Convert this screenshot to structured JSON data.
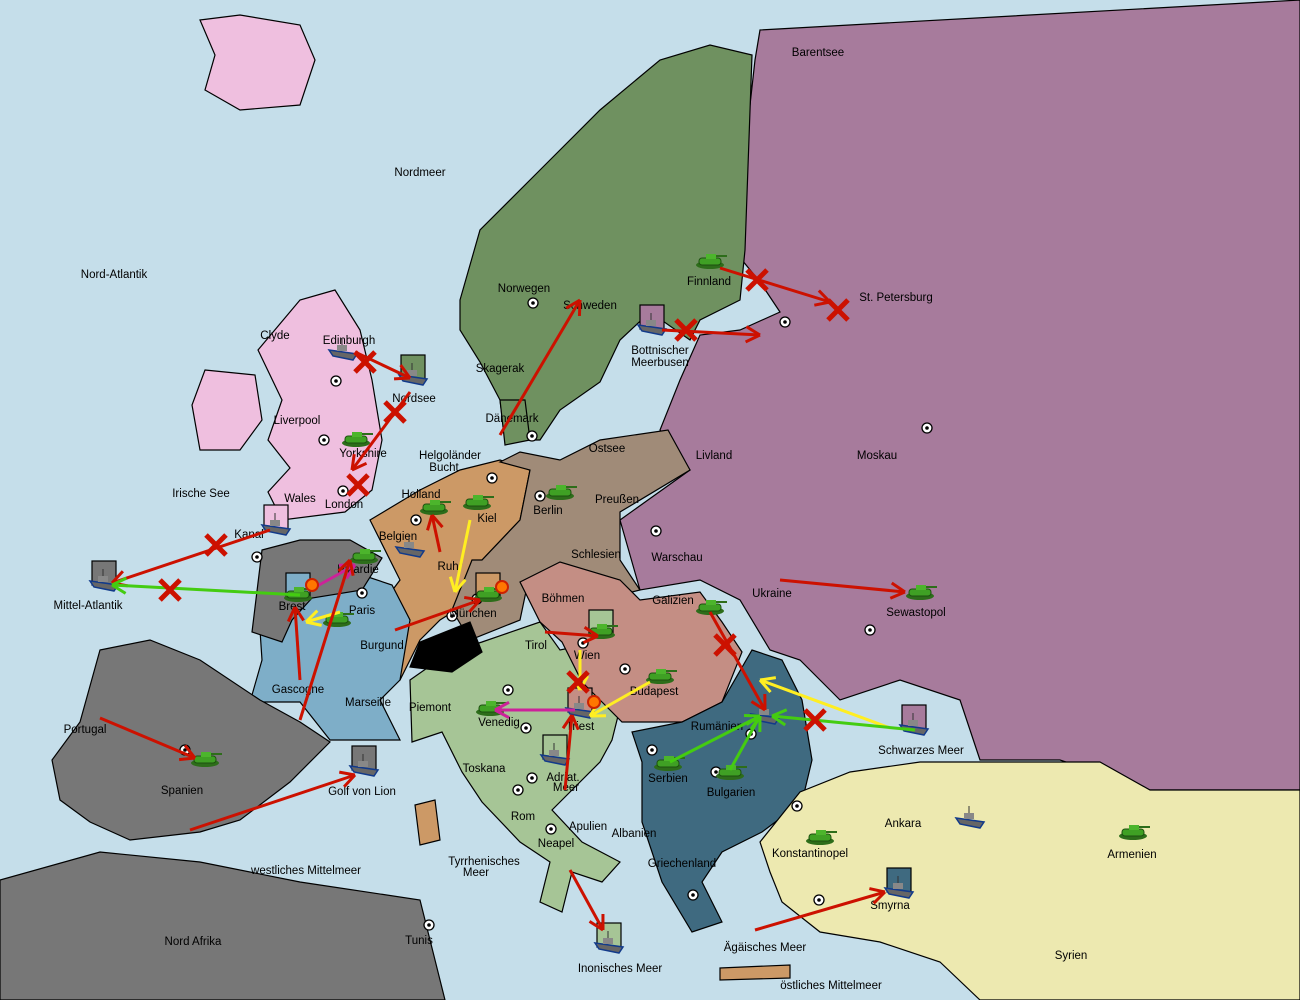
{
  "colors": {
    "sea": "#c5deea",
    "russia": "#a77b9c",
    "scandinavia": "#6f9160",
    "england": "#efbfdf",
    "germany": "#a08b78",
    "low_countries": "#cc9966",
    "france": "#7eaec8",
    "neutral_grey": "#777777",
    "italy": "#a6c596",
    "austria": "#c48e84",
    "balkans": "#3f6a80",
    "turkey": "#ede9b0",
    "switzerland": "#000000",
    "order_move": "#cc1100",
    "order_support": "#ffee22",
    "order_convoy_green": "#44cc11",
    "order_retreat": "#cc2299"
  },
  "provinces": [
    "Barentsee",
    "Nordmeer",
    "Nord-Atlantik",
    "Norwegen",
    "Schweden",
    "Finnland",
    "St. Petersburg",
    "Clyde",
    "Edinburgh",
    "Skagerak",
    "Bottnischer",
    "Meerbusen",
    "Nordsee",
    "Liverpool",
    "Dänemark",
    "Ostsee",
    "Livland",
    "Moskau",
    "Helgoländer",
    "Bucht",
    "Yorkshire",
    "Irische See",
    "Holland",
    "Wales",
    "London",
    "Preußen",
    "Berlin",
    "Kiel",
    "Kanal",
    "Belgien",
    "Schlesien",
    "Warschau",
    "Pikardie",
    "Ruhr",
    "Ukraine",
    "Sewastopol",
    "Mittel-Atlantik",
    "Brest",
    "Paris",
    "Böhmen",
    "Galizien",
    "München",
    "Burgund",
    "Tirol",
    "Wien",
    "Gascogne",
    "Budapest",
    "Marseille",
    "Piemont",
    "Venedig",
    "Triest",
    "Rumänien",
    "Schwarzes Meer",
    "Portugal",
    "Spanien",
    "Serbien",
    "Adriat.",
    "Meer",
    "Bulgarien",
    "Golf von Lion",
    "Toskana",
    "Rom",
    "Apulien",
    "Albanien",
    "Ankara",
    "Neapel",
    "Konstantinopel",
    "Armenien",
    "Tyrrhenisches",
    "Meer",
    "westliches Mittelmeer",
    "Griechenland",
    "Smyrna",
    "Nord Afrika",
    "Tunis",
    "Ägäisches Meer",
    "Syrien",
    "Inonisches Meer",
    "östliches Mittelmeer"
  ],
  "units": [
    {
      "type": "fleet",
      "at": "Edinburgh"
    },
    {
      "type": "fleet",
      "at": "Nordsee",
      "box": "#6f9160"
    },
    {
      "type": "army",
      "at": "Yorkshire"
    },
    {
      "type": "army",
      "at": "Finnland"
    },
    {
      "type": "fleet",
      "at": "Bottnischer Meerbusen",
      "box": "#a77b9c"
    },
    {
      "type": "army",
      "at": "Holland"
    },
    {
      "type": "army",
      "at": "Kiel"
    },
    {
      "type": "army",
      "at": "Berlin"
    },
    {
      "type": "fleet",
      "at": "Belgien"
    },
    {
      "type": "fleet",
      "at": "Kanal",
      "box": "#efbfdf"
    },
    {
      "type": "fleet",
      "at": "Mittel-Atlantik",
      "box": "#777777"
    },
    {
      "type": "army",
      "at": "Pikardie"
    },
    {
      "type": "army",
      "at": "Brest",
      "box": "#7eaec8"
    },
    {
      "type": "army",
      "at": "Paris"
    },
    {
      "type": "army",
      "at": "München",
      "box": "#cc9966"
    },
    {
      "type": "army",
      "at": "Wien",
      "box": "#a6c596"
    },
    {
      "type": "army",
      "at": "Budapest"
    },
    {
      "type": "army",
      "at": "Galizien"
    },
    {
      "type": "fleet",
      "at": "Triest",
      "box": "#c48e84"
    },
    {
      "type": "army",
      "at": "Venedig"
    },
    {
      "type": "fleet",
      "at": "Adriat. Meer",
      "box": "#a6c596"
    },
    {
      "type": "fleet",
      "at": "Rumänien"
    },
    {
      "type": "army",
      "at": "Serbien"
    },
    {
      "type": "army",
      "at": "Bulgarien"
    },
    {
      "type": "fleet",
      "at": "Schwarzes Meer",
      "box": "#a77b9c"
    },
    {
      "type": "army",
      "at": "Sewastopol"
    },
    {
      "type": "army",
      "at": "Spanien"
    },
    {
      "type": "fleet",
      "at": "Golf von Lion",
      "box": "#777777"
    },
    {
      "type": "fleet",
      "at": "Inonisches Meer",
      "box": "#a6c596"
    },
    {
      "type": "army",
      "at": "Konstantinopel"
    },
    {
      "type": "fleet",
      "at": "Ankara"
    },
    {
      "type": "army",
      "at": "Armenien"
    },
    {
      "type": "fleet",
      "at": "Smyrna",
      "box": "#3f6a80"
    }
  ]
}
